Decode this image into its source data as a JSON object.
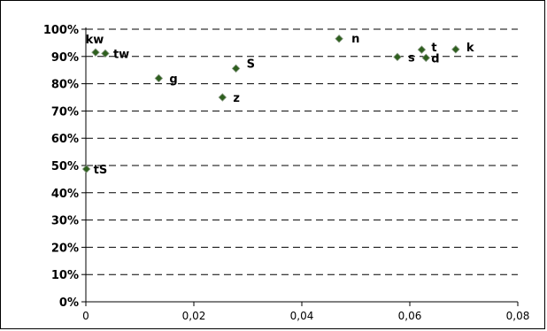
{
  "chart_data": {
    "type": "scatter",
    "title": "",
    "xlabel": "",
    "ylabel": "",
    "xlim": [
      0,
      0.08
    ],
    "ylim": [
      0,
      1
    ],
    "x_ticks": [
      "0",
      "0,02",
      "0,04",
      "0,06",
      "0,08"
    ],
    "y_ticks": [
      "0%",
      "10%",
      "20%",
      "30%",
      "40%",
      "50%",
      "60%",
      "70%",
      "80%",
      "90%",
      "100%"
    ],
    "grid": "horizontal-dashed",
    "legend": "none",
    "marker_color": "#2e5f1e",
    "points": [
      {
        "label": "tS",
        "x": 0.0001,
        "y": 0.487
      },
      {
        "label": "kw",
        "x": 0.0018,
        "y": 0.915
      },
      {
        "label": "tw",
        "x": 0.0036,
        "y": 0.911
      },
      {
        "label": "g",
        "x": 0.0135,
        "y": 0.82
      },
      {
        "label": "z",
        "x": 0.0253,
        "y": 0.75
      },
      {
        "label": "S",
        "x": 0.0278,
        "y": 0.856
      },
      {
        "label": "n",
        "x": 0.0469,
        "y": 0.965
      },
      {
        "label": "s",
        "x": 0.0577,
        "y": 0.898
      },
      {
        "label": "t",
        "x": 0.0622,
        "y": 0.925
      },
      {
        "label": "d",
        "x": 0.063,
        "y": 0.895
      },
      {
        "label": "k",
        "x": 0.0685,
        "y": 0.926
      }
    ]
  }
}
